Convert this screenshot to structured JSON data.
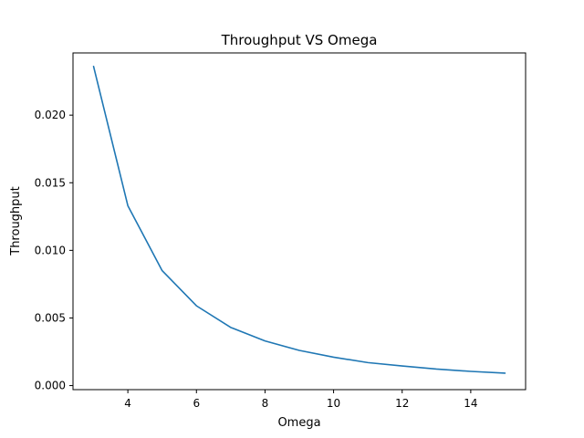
{
  "chart_data": {
    "type": "line",
    "title": "Throughput VS Omega",
    "xlabel": "Omega",
    "ylabel": "Throughput",
    "xlim": [
      2.4,
      15.6
    ],
    "ylim": [
      -0.0003,
      0.0246
    ],
    "xticks": [
      4,
      6,
      8,
      10,
      12,
      14
    ],
    "yticks": [
      0.0,
      0.005,
      0.01,
      0.015,
      0.02
    ],
    "xtick_labels": [
      "4",
      "6",
      "8",
      "10",
      "12",
      "14"
    ],
    "ytick_labels": [
      "0.000",
      "0.005",
      "0.010",
      "0.015",
      "0.020"
    ],
    "grid": false,
    "series": [
      {
        "color": "#1f77b4",
        "x": [
          3,
          4,
          5,
          6,
          7,
          8,
          9,
          10,
          11,
          12,
          13,
          14,
          15
        ],
        "y": [
          0.0236,
          0.0133,
          0.0085,
          0.0059,
          0.0043,
          0.0033,
          0.0026,
          0.0021,
          0.0017,
          0.00145,
          0.00122,
          0.00105,
          0.00092
        ]
      }
    ]
  }
}
